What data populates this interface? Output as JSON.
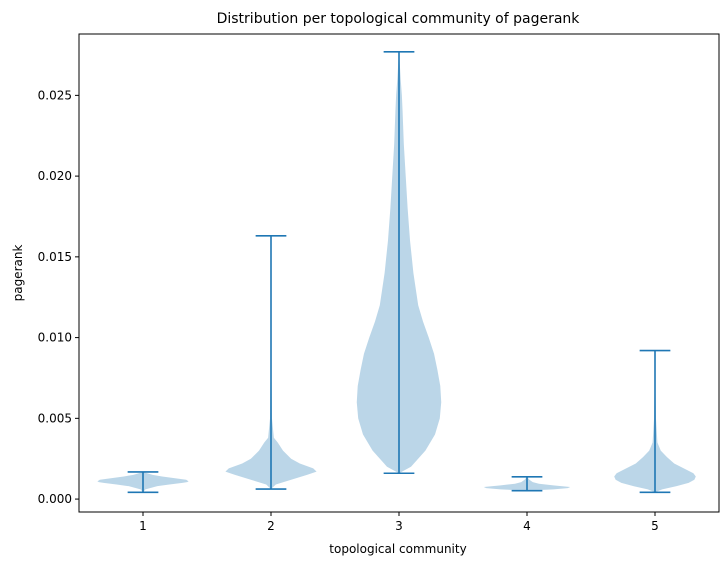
{
  "chart_data": {
    "type": "violin",
    "title": "Distribution per topological community of pagerank",
    "xlabel": "topological community",
    "ylabel": "pagerank",
    "ylim": [
      -0.0008,
      0.0288
    ],
    "xlim": [
      0.5,
      5.5
    ],
    "yticks": [
      0.0,
      0.005,
      0.01,
      0.015,
      0.02,
      0.025
    ],
    "ytick_labels": [
      "0.000",
      "0.005",
      "0.010",
      "0.015",
      "0.020",
      "0.025"
    ],
    "categories": [
      "1",
      "2",
      "3",
      "4",
      "5"
    ],
    "color": "#1f77b4",
    "body_color": "#1f77b4",
    "body_opacity": 0.3,
    "grid": false,
    "violins": [
      {
        "category": "1",
        "min": 0.00042,
        "max": 0.00168,
        "profile": [
          [
            0.00042,
            0.0
          ],
          [
            0.0006,
            0.05
          ],
          [
            0.0008,
            0.3
          ],
          [
            0.0009,
            0.55
          ],
          [
            0.001,
            0.82
          ],
          [
            0.00105,
            0.92
          ],
          [
            0.0011,
            0.95
          ],
          [
            0.0012,
            0.9
          ],
          [
            0.0013,
            0.65
          ],
          [
            0.0014,
            0.4
          ],
          [
            0.0015,
            0.2
          ],
          [
            0.00168,
            0.0
          ]
        ]
      },
      {
        "category": "2",
        "min": 0.00062,
        "max": 0.0163,
        "profile": [
          [
            0.00062,
            0.0
          ],
          [
            0.0009,
            0.1
          ],
          [
            0.0012,
            0.42
          ],
          [
            0.0015,
            0.75
          ],
          [
            0.0017,
            0.95
          ],
          [
            0.0019,
            0.88
          ],
          [
            0.0022,
            0.6
          ],
          [
            0.0025,
            0.42
          ],
          [
            0.003,
            0.25
          ],
          [
            0.0035,
            0.14
          ],
          [
            0.0038,
            0.06
          ],
          [
            0.005,
            0.02
          ],
          [
            0.008,
            0.008
          ],
          [
            0.012,
            0.004
          ],
          [
            0.0163,
            0.0
          ]
        ]
      },
      {
        "category": "3",
        "min": 0.0016,
        "max": 0.0277,
        "profile": [
          [
            0.0016,
            0.0
          ],
          [
            0.002,
            0.25
          ],
          [
            0.003,
            0.55
          ],
          [
            0.004,
            0.75
          ],
          [
            0.005,
            0.85
          ],
          [
            0.006,
            0.88
          ],
          [
            0.007,
            0.86
          ],
          [
            0.008,
            0.8
          ],
          [
            0.009,
            0.73
          ],
          [
            0.01,
            0.62
          ],
          [
            0.011,
            0.5
          ],
          [
            0.012,
            0.4
          ],
          [
            0.014,
            0.3
          ],
          [
            0.016,
            0.23
          ],
          [
            0.018,
            0.18
          ],
          [
            0.02,
            0.14
          ],
          [
            0.022,
            0.1
          ],
          [
            0.024,
            0.075
          ],
          [
            0.025,
            0.06
          ],
          [
            0.026,
            0.035
          ],
          [
            0.027,
            0.015
          ],
          [
            0.0277,
            0.0
          ]
        ]
      },
      {
        "category": "4",
        "min": 0.00052,
        "max": 0.00138,
        "profile": [
          [
            0.00052,
            0.0
          ],
          [
            0.0006,
            0.55
          ],
          [
            0.00068,
            0.85
          ],
          [
            0.00075,
            0.9
          ],
          [
            0.00085,
            0.55
          ],
          [
            0.00095,
            0.25
          ],
          [
            0.00105,
            0.12
          ],
          [
            0.0012,
            0.05
          ],
          [
            0.00138,
            0.0
          ]
        ]
      },
      {
        "category": "5",
        "min": 0.00042,
        "max": 0.0092,
        "profile": [
          [
            0.00042,
            0.0
          ],
          [
            0.0006,
            0.15
          ],
          [
            0.0008,
            0.45
          ],
          [
            0.001,
            0.7
          ],
          [
            0.0012,
            0.82
          ],
          [
            0.0014,
            0.85
          ],
          [
            0.0016,
            0.8
          ],
          [
            0.0019,
            0.6
          ],
          [
            0.0022,
            0.4
          ],
          [
            0.0026,
            0.25
          ],
          [
            0.003,
            0.12
          ],
          [
            0.0035,
            0.05
          ],
          [
            0.005,
            0.02
          ],
          [
            0.007,
            0.008
          ],
          [
            0.0092,
            0.0
          ]
        ]
      }
    ]
  }
}
